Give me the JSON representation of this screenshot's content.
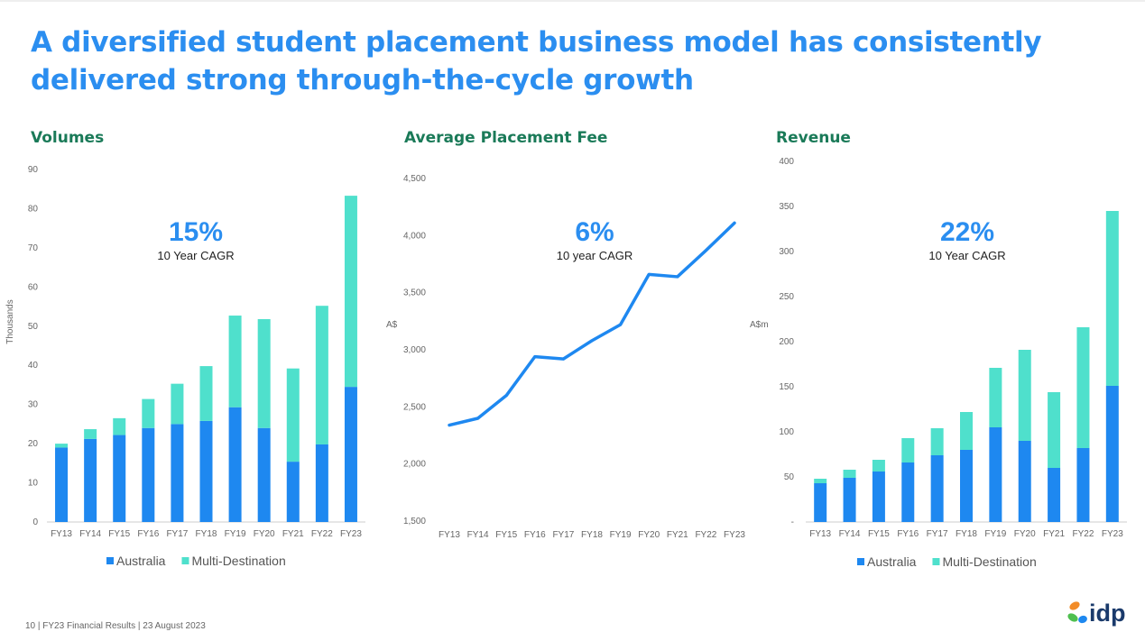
{
  "title_line1": "A diversified student placement business model  has consistently",
  "title_line2": "delivered strong through-the-cycle growth",
  "footer": "10  | FY23 Financial Results  | 23 August 2023",
  "logo_text": "idp",
  "colors": {
    "australia": "#1e88f0",
    "multi": "#4fe0cc",
    "title": "#2b8ef0",
    "section": "#1a7a58"
  },
  "chart_data": [
    {
      "type": "bar",
      "title": "Volumes",
      "ylabel": "Thousands",
      "ylim": [
        0,
        90
      ],
      "yticks": [
        "0",
        "10",
        "20",
        "30",
        "40",
        "50",
        "60",
        "70",
        "80",
        "90"
      ],
      "categories": [
        "FY13",
        "FY14",
        "FY15",
        "FY16",
        "FY17",
        "FY18",
        "FY19",
        "FY20",
        "FY21",
        "FY22",
        "FY23"
      ],
      "stacked": true,
      "series": [
        {
          "name": "Australia",
          "values": [
            19,
            21.2,
            22.2,
            24,
            25,
            25.8,
            29.3,
            24,
            15.4,
            19.8,
            34.5
          ]
        },
        {
          "name": "Multi-Destination",
          "values": [
            1,
            2.5,
            4.3,
            7.4,
            10.3,
            14,
            23.4,
            27.8,
            23.8,
            35.4,
            48.8
          ]
        }
      ],
      "annotation": {
        "value": "15%",
        "label": "10 Year CAGR"
      },
      "legend_position": "bottom"
    },
    {
      "type": "line",
      "title": "Average Placement Fee",
      "ylabel": "A$",
      "ylim": [
        1500,
        4500
      ],
      "yticks": [
        "1,500",
        "2,000",
        "2,500",
        "3,000",
        "3,500",
        "4,000",
        "4,500"
      ],
      "categories": [
        "FY13",
        "FY14",
        "FY15",
        "FY16",
        "FY17",
        "FY18",
        "FY19",
        "FY20",
        "FY21",
        "FY22",
        "FY23"
      ],
      "series": [
        {
          "values": [
            2340,
            2400,
            2600,
            2940,
            2920,
            3080,
            3220,
            3660,
            3640,
            3870,
            4110
          ]
        }
      ],
      "annotation": {
        "value": "6%",
        "label": "10 year CAGR"
      }
    },
    {
      "type": "bar",
      "title": "Revenue",
      "ylabel": "A$m",
      "ylim": [
        0,
        400
      ],
      "yticks": [
        "-",
        "50",
        "100",
        "150",
        "200",
        "250",
        "300",
        "350",
        "400"
      ],
      "categories": [
        "FY13",
        "FY14",
        "FY15",
        "FY16",
        "FY17",
        "FY18",
        "FY19",
        "FY20",
        "FY21",
        "FY22",
        "FY23"
      ],
      "stacked": true,
      "series": [
        {
          "name": "Australia",
          "values": [
            43,
            49,
            56,
            66,
            74,
            80,
            105,
            90,
            60,
            82,
            151
          ]
        },
        {
          "name": "Multi-Destination",
          "values": [
            5,
            9,
            13,
            27,
            30,
            42,
            66,
            101,
            84,
            134,
            194
          ]
        }
      ],
      "annotation": {
        "value": "22%",
        "label": "10 Year CAGR"
      },
      "legend_position": "bottom"
    }
  ]
}
